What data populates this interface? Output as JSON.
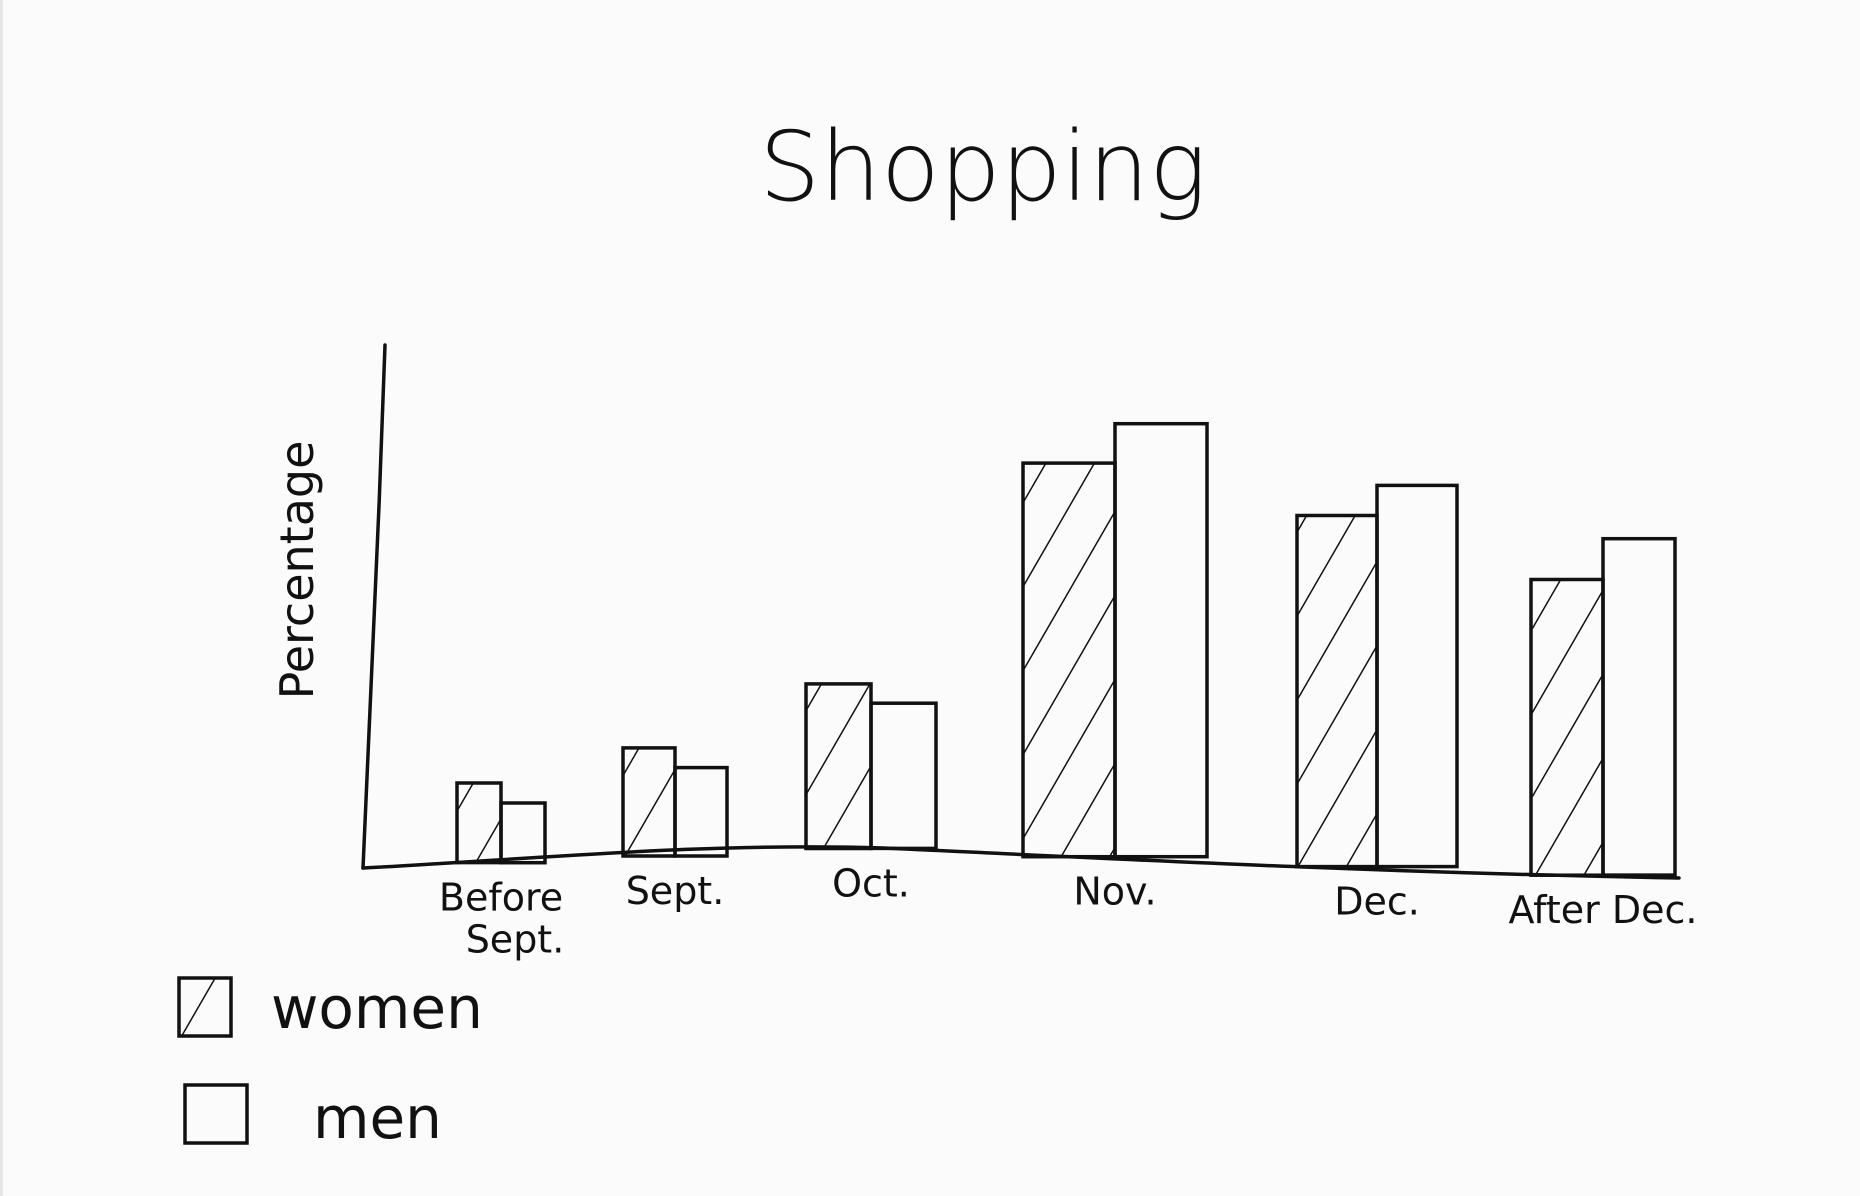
{
  "chart_data": {
    "type": "bar",
    "title": "Shopping",
    "xlabel": "",
    "ylabel": "Percentage",
    "categories": [
      "Before Sept.",
      "Sept.",
      "Oct.",
      "Nov.",
      "Dec.",
      "After Dec."
    ],
    "series": [
      {
        "name": "women",
        "values": [
          8,
          11,
          17,
          40,
          35,
          29
        ],
        "pattern": "hatched"
      },
      {
        "name": "men",
        "values": [
          6,
          9,
          15,
          44,
          38,
          33
        ],
        "pattern": "empty"
      }
    ],
    "ylim": [
      0,
      52
    ],
    "grid": false,
    "legend_position": "bottom-left",
    "ink_color": "#111111",
    "background_color": "#fbfbfb"
  }
}
